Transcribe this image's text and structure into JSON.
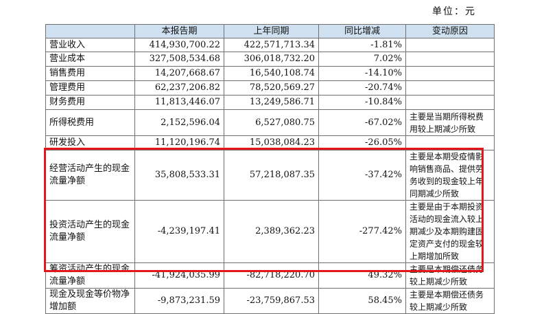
{
  "unit_label": "单位：元",
  "headers": [
    "",
    "本报告期",
    "上年同期",
    "同比增减",
    "变动原因"
  ],
  "rows": [
    {
      "item": "营业收入",
      "current": "414,930,700.22",
      "prior": "422,571,713.34",
      "change": "-1.81%",
      "reason": ""
    },
    {
      "item": "营业成本",
      "current": "327,508,534.68",
      "prior": "306,018,732.20",
      "change": "7.02%",
      "reason": ""
    },
    {
      "item": "销售费用",
      "current": "14,207,668.67",
      "prior": "16,540,108.74",
      "change": "-14.10%",
      "reason": ""
    },
    {
      "item": "管理费用",
      "current": "62,237,206.82",
      "prior": "78,520,569.27",
      "change": "-20.74%",
      "reason": ""
    },
    {
      "item": "财务费用",
      "current": "11,813,446.07",
      "prior": "13,249,586.71",
      "change": "-10.84%",
      "reason": ""
    },
    {
      "item": "所得税费用",
      "current": "2,152,596.04",
      "prior": "6,527,080.75",
      "change": "-67.02%",
      "reason": "主要是当期所得税费用较上期减少所致"
    },
    {
      "item": "研发投入",
      "current": "11,120,196.74",
      "prior": "15,038,084.23",
      "change": "-26.05%",
      "reason": ""
    },
    {
      "item": "经营活动产生的现金流量净额",
      "current": "35,808,533.31",
      "prior": "57,218,087.35",
      "change": "-37.42%",
      "reason": "主要是本期受疫情影响销售商品、提供劳务收到的现金较上年同期减少所致"
    },
    {
      "item": "投资活动产生的现金流量净额",
      "current": "-4,239,197.41",
      "prior": "2,389,362.23",
      "change": "-277.42%",
      "reason": "主要是由于本期投资活动的现金流入较上期减少及本期购建固定资产支付的现金较上期增加所致"
    },
    {
      "item": "筹资活动产生的现金流量净额",
      "current": "-41,924,035.99",
      "prior": "-82,718,220.70",
      "change": "49.32%",
      "reason": "主要是本期偿还债务较上期减少所致"
    },
    {
      "item": "现金及现金等价物净增加额",
      "current": "-9,873,231.59",
      "prior": "-23,759,867.53",
      "change": "58.45%",
      "reason": "主要是本期偿还债务较上期减少所致"
    }
  ],
  "highlight_color": "#e3161c",
  "header_bg": "#cfe0f0"
}
